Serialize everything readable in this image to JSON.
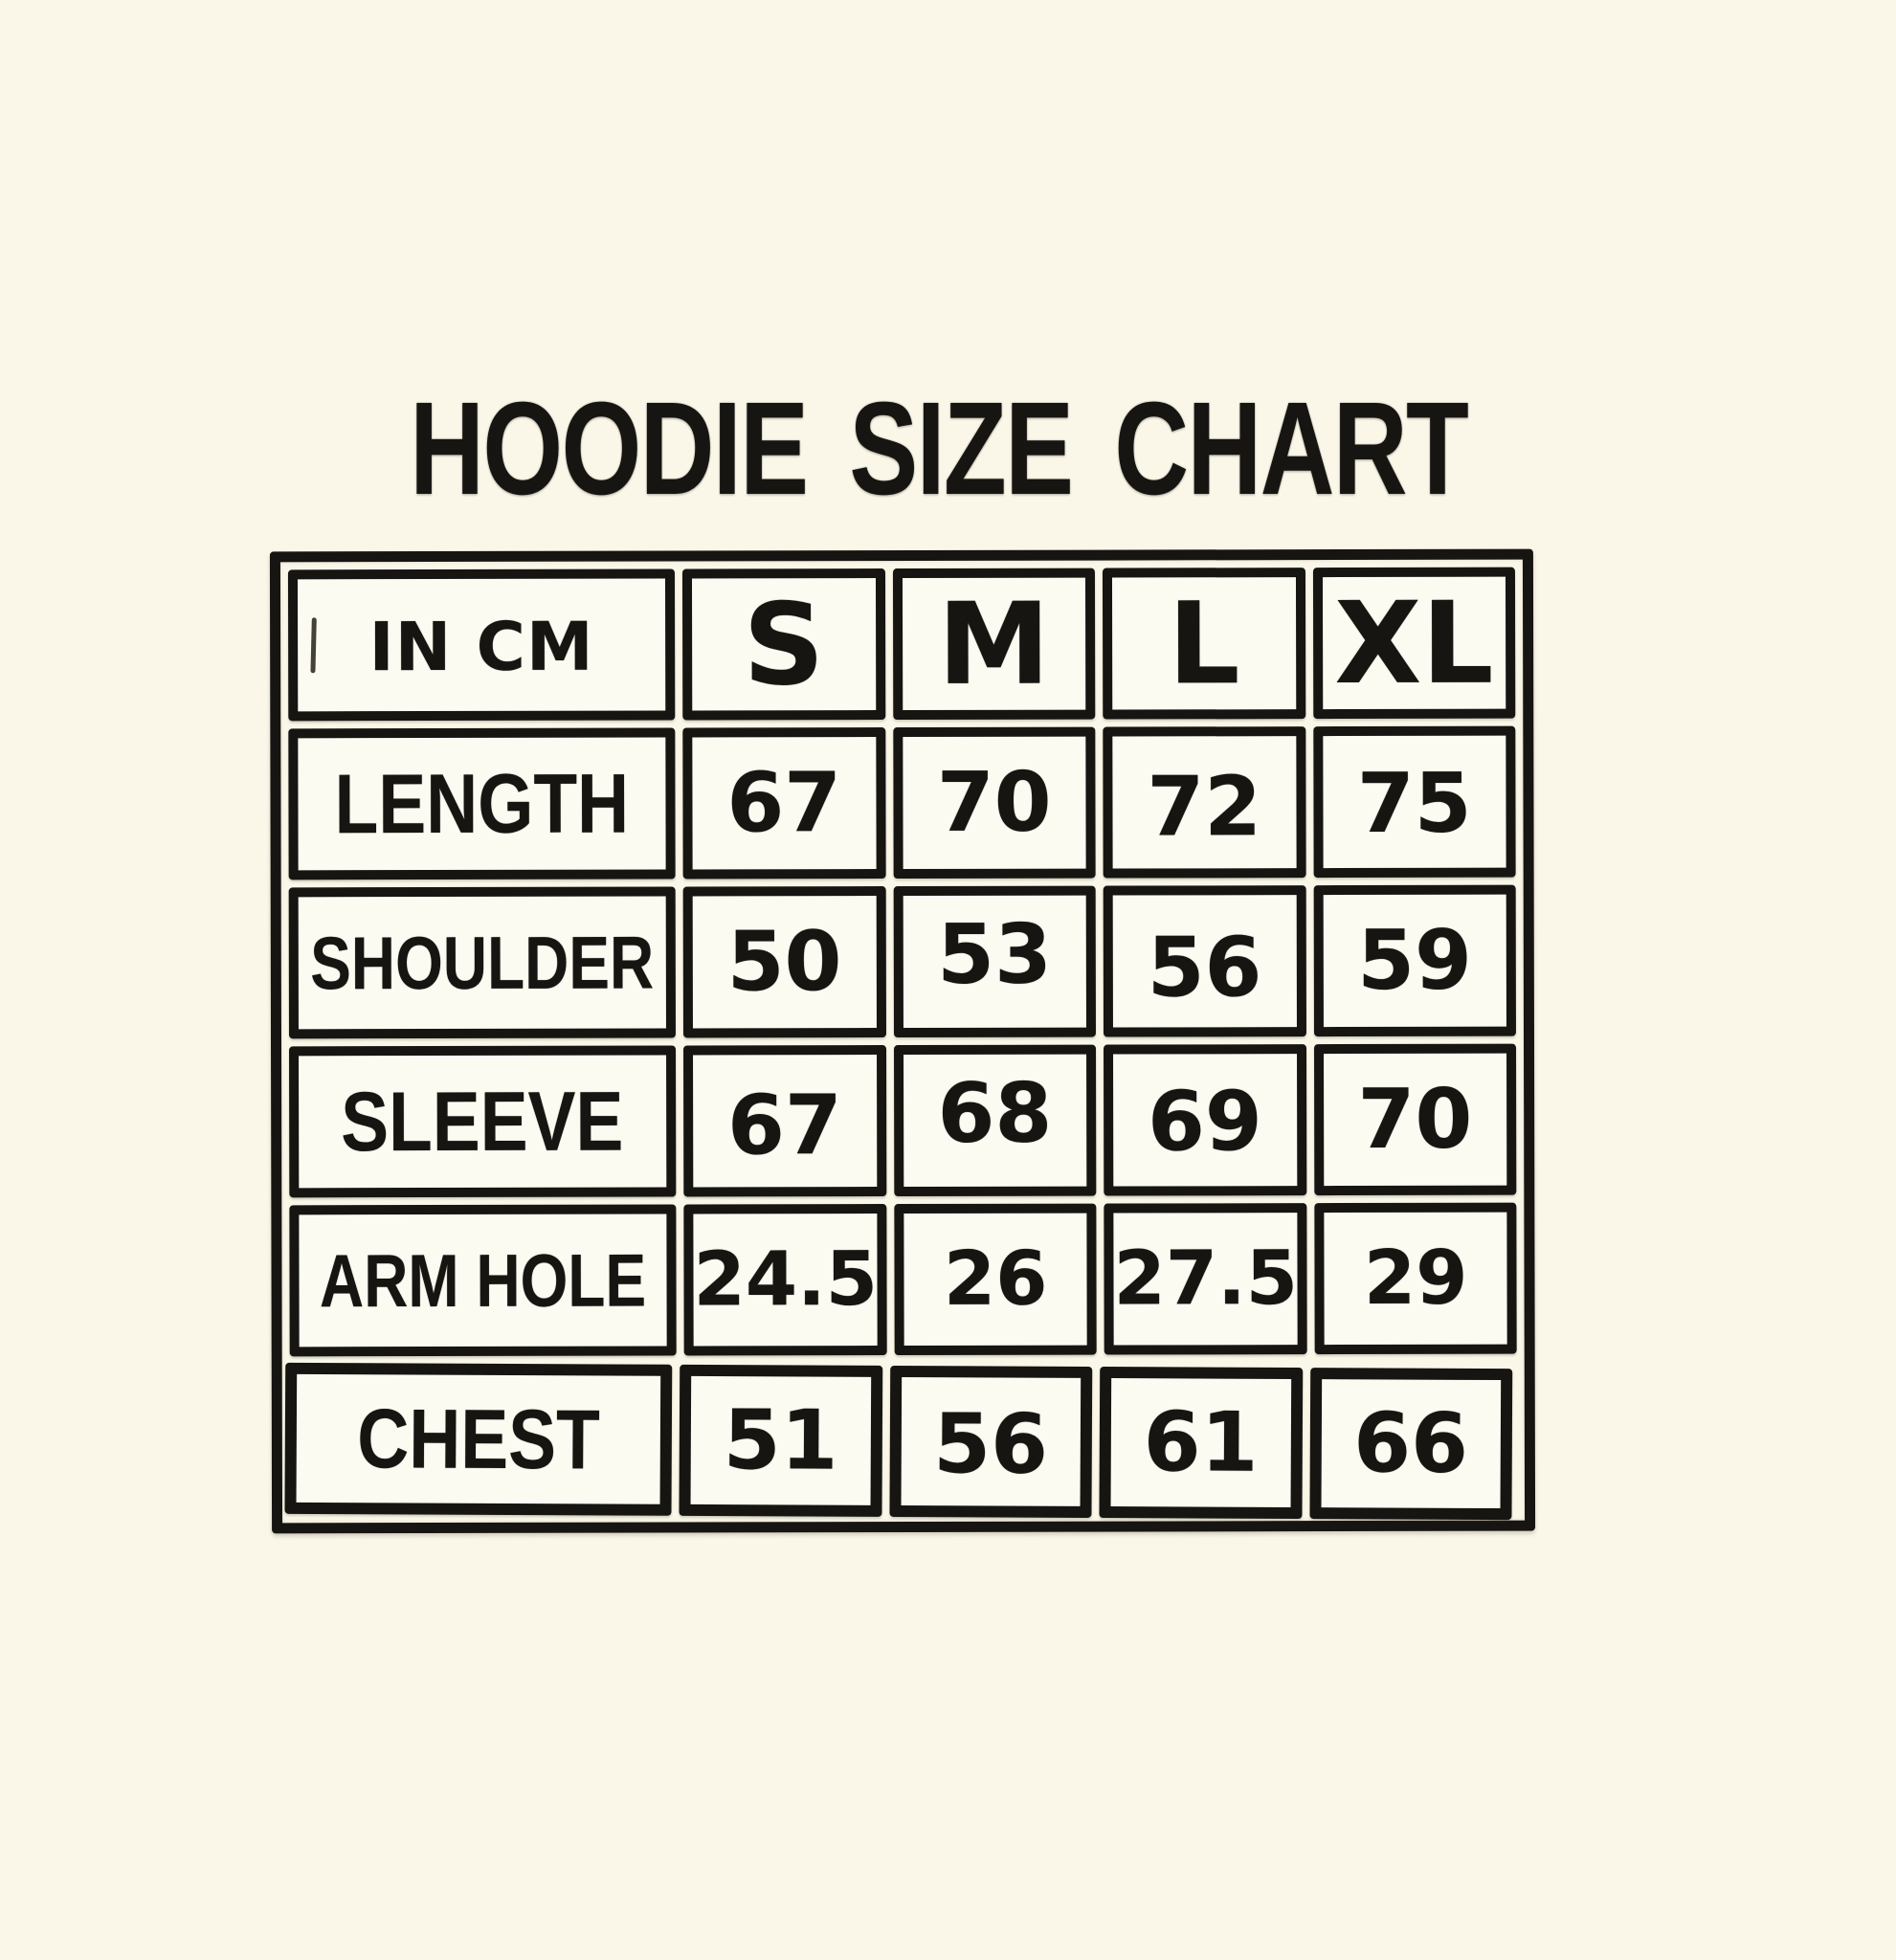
{
  "page": {
    "colors": {
      "background": "#faf7e9",
      "cell_background": "#fcfbf2",
      "ink": "#171512"
    }
  },
  "title": "HOODIE SIZE CHART",
  "table": {
    "unit_label": "IN CM",
    "columns": [
      "S",
      "M",
      "L",
      "XL"
    ],
    "rows": [
      {
        "label": "LENGTH",
        "values": [
          "67",
          "70",
          "72",
          "75"
        ]
      },
      {
        "label": "SHOULDER",
        "values": [
          "50",
          "53",
          "56",
          "59"
        ]
      },
      {
        "label": "SLEEVE",
        "values": [
          "67",
          "68",
          "69",
          "70"
        ]
      },
      {
        "label": "ARM HOLE",
        "values": [
          "24.5",
          "26",
          "27.5",
          "29"
        ]
      },
      {
        "label": "CHEST",
        "values": [
          "51",
          "56",
          "61",
          "66"
        ]
      }
    ]
  },
  "chart_data": {
    "type": "table",
    "title": "HOODIE SIZE CHART",
    "unit": "IN CM",
    "columns": [
      "S",
      "M",
      "L",
      "XL"
    ],
    "rows": [
      {
        "label": "LENGTH",
        "values": [
          67,
          70,
          72,
          75
        ]
      },
      {
        "label": "SHOULDER",
        "values": [
          50,
          53,
          56,
          59
        ]
      },
      {
        "label": "SLEEVE",
        "values": [
          67,
          68,
          69,
          70
        ]
      },
      {
        "label": "ARM HOLE",
        "values": [
          24.5,
          26,
          27.5,
          29
        ]
      },
      {
        "label": "CHEST",
        "values": [
          51,
          56,
          61,
          66
        ]
      }
    ]
  }
}
